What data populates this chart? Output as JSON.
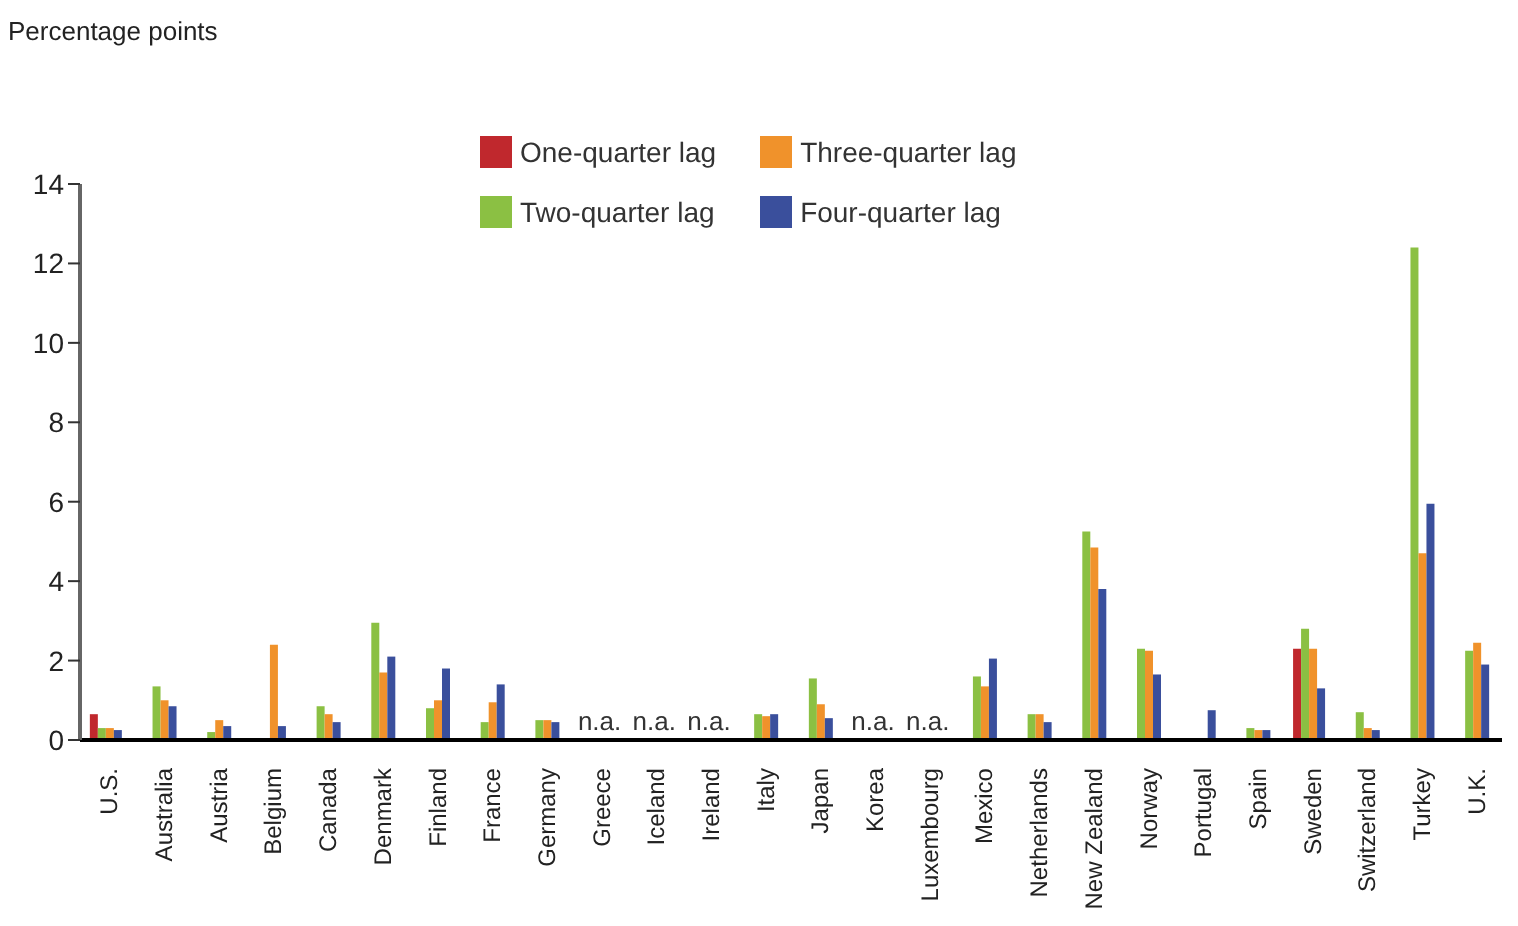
{
  "chart_data": {
    "type": "bar",
    "ylabel": "Percentage points",
    "categories": [
      "U.S.",
      "Australia",
      "Austria",
      "Belgium",
      "Canada",
      "Denmark",
      "Finland",
      "France",
      "Germany",
      "Greece",
      "Iceland",
      "Ireland",
      "Italy",
      "Japan",
      "Korea",
      "Luxembourg",
      "Mexico",
      "Netherlands",
      "New Zealand",
      "Norway",
      "Portugal",
      "Spain",
      "Sweden",
      "Switzerland",
      "Turkey",
      "U.K."
    ],
    "series": [
      {
        "name": "One-quarter lag",
        "color": "#c0282d",
        "values": [
          0.65,
          null,
          null,
          null,
          null,
          null,
          null,
          null,
          null,
          null,
          null,
          null,
          null,
          null,
          null,
          null,
          null,
          null,
          null,
          null,
          null,
          null,
          2.3,
          null,
          null,
          null
        ]
      },
      {
        "name": "Two-quarter lag",
        "color": "#8bc043",
        "values": [
          0.3,
          1.35,
          0.2,
          null,
          0.85,
          2.95,
          0.8,
          0.45,
          0.5,
          null,
          null,
          null,
          0.65,
          1.55,
          null,
          null,
          1.6,
          0.65,
          5.25,
          2.3,
          null,
          0.3,
          2.8,
          0.7,
          12.4,
          2.25
        ]
      },
      {
        "name": "Three-quarter lag",
        "color": "#f0922b",
        "values": [
          0.3,
          1.0,
          0.5,
          2.4,
          0.65,
          1.7,
          1.0,
          0.95,
          0.5,
          null,
          null,
          null,
          0.6,
          0.9,
          null,
          null,
          1.35,
          0.65,
          4.85,
          2.25,
          null,
          0.25,
          2.3,
          0.3,
          4.7,
          2.45
        ]
      },
      {
        "name": "Four-quarter lag",
        "color": "#3a4f9c",
        "values": [
          0.25,
          0.85,
          0.35,
          0.35,
          0.45,
          2.1,
          1.8,
          1.4,
          0.45,
          null,
          null,
          null,
          0.65,
          0.55,
          null,
          null,
          2.05,
          0.45,
          3.8,
          1.65,
          0.75,
          0.25,
          1.3,
          0.25,
          5.95,
          1.9
        ]
      }
    ],
    "ylim": [
      0,
      14
    ],
    "yticks": [
      0,
      2,
      4,
      6,
      8,
      10,
      12,
      14
    ],
    "grid": false,
    "legend": "top",
    "annotations": [
      "n.a.",
      "n.a.",
      "n.a.",
      "n.a.",
      "n.a."
    ]
  }
}
